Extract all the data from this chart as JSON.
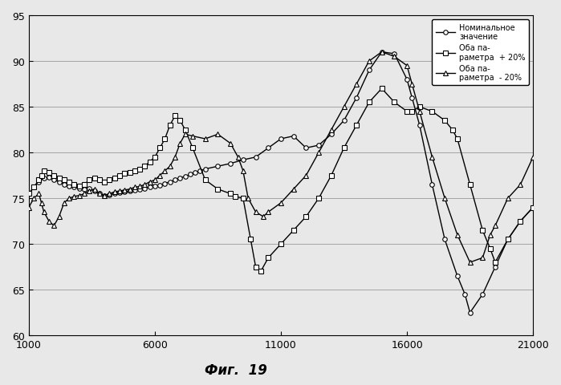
{
  "fig_caption": "Фиг.  19",
  "xlim": [
    1000,
    21000
  ],
  "ylim": [
    60,
    95
  ],
  "xticks": [
    1000,
    6000,
    11000,
    16000,
    21000
  ],
  "yticks": [
    60,
    65,
    70,
    75,
    80,
    85,
    90,
    95
  ],
  "legend_labels": [
    "Номинальное\nзначение",
    "Оба па-\nраметра  + 20%",
    "Оба па-\nраметра  - 20%"
  ],
  "nominal_x": [
    1000,
    1200,
    1400,
    1600,
    1800,
    2000,
    2200,
    2400,
    2600,
    2800,
    3000,
    3200,
    3400,
    3600,
    3800,
    4000,
    4200,
    4400,
    4600,
    4800,
    5000,
    5200,
    5400,
    5600,
    5800,
    6000,
    6200,
    6400,
    6600,
    6800,
    7000,
    7200,
    7400,
    7600,
    7800,
    8000,
    8500,
    9000,
    9500,
    10000,
    10500,
    11000,
    11500,
    12000,
    12500,
    13000,
    13500,
    14000,
    14500,
    15000,
    15500,
    16000,
    16200,
    16500,
    17000,
    17500,
    18000,
    18300,
    18500,
    19000,
    19500,
    20000,
    20500,
    21000
  ],
  "nominal_y": [
    75.5,
    76.2,
    76.8,
    77.2,
    77.3,
    77.0,
    76.8,
    76.5,
    76.3,
    76.2,
    76.1,
    76.0,
    76.1,
    75.8,
    75.5,
    75.3,
    75.4,
    75.5,
    75.6,
    75.7,
    75.8,
    75.9,
    76.0,
    76.1,
    76.2,
    76.3,
    76.4,
    76.6,
    76.8,
    77.0,
    77.2,
    77.4,
    77.6,
    77.8,
    78.0,
    78.2,
    78.5,
    78.8,
    79.2,
    79.5,
    80.5,
    81.5,
    81.8,
    80.5,
    80.8,
    82.0,
    83.5,
    86.0,
    89.0,
    91.0,
    90.8,
    88.0,
    86.0,
    83.0,
    76.5,
    70.5,
    66.5,
    64.5,
    62.5,
    64.5,
    67.5,
    70.5,
    72.5,
    74.0
  ],
  "plus20_x": [
    1000,
    1200,
    1400,
    1500,
    1600,
    1800,
    2000,
    2200,
    2400,
    2600,
    2800,
    3000,
    3200,
    3400,
    3600,
    3800,
    4000,
    4200,
    4400,
    4600,
    4800,
    5000,
    5200,
    5400,
    5600,
    5800,
    6000,
    6200,
    6400,
    6600,
    6800,
    7000,
    7200,
    7500,
    8000,
    8500,
    9000,
    9200,
    9500,
    9800,
    10000,
    10200,
    10500,
    11000,
    11500,
    12000,
    12500,
    13000,
    13500,
    14000,
    14500,
    15000,
    15500,
    16000,
    16200,
    16500,
    17000,
    17500,
    17800,
    18000,
    18500,
    19000,
    19300,
    19500,
    20000,
    20500,
    21000
  ],
  "plus20_y": [
    75.5,
    76.2,
    77.0,
    77.5,
    78.0,
    77.8,
    77.5,
    77.2,
    77.0,
    76.8,
    76.5,
    76.3,
    76.5,
    77.0,
    77.2,
    77.0,
    76.8,
    77.0,
    77.2,
    77.5,
    77.7,
    77.8,
    78.0,
    78.2,
    78.5,
    79.0,
    79.5,
    80.5,
    81.5,
    83.0,
    84.0,
    83.5,
    82.5,
    80.5,
    77.0,
    76.0,
    75.5,
    75.2,
    75.0,
    70.5,
    67.5,
    67.0,
    68.5,
    70.0,
    71.5,
    73.0,
    75.0,
    77.5,
    80.5,
    83.0,
    85.5,
    87.0,
    85.5,
    84.5,
    84.5,
    85.0,
    84.5,
    83.5,
    82.5,
    81.5,
    76.5,
    71.5,
    69.5,
    68.0,
    70.5,
    72.5,
    74.0
  ],
  "minus20_x": [
    1000,
    1200,
    1400,
    1500,
    1600,
    1800,
    2000,
    2200,
    2400,
    2600,
    2800,
    3000,
    3200,
    3400,
    3600,
    3800,
    4000,
    4200,
    4400,
    4600,
    4800,
    5000,
    5200,
    5400,
    5600,
    5800,
    6000,
    6200,
    6400,
    6600,
    6800,
    7000,
    7200,
    7500,
    8000,
    8500,
    9000,
    9300,
    9500,
    9700,
    10000,
    10300,
    10500,
    11000,
    11500,
    12000,
    12500,
    13000,
    13500,
    14000,
    14500,
    15000,
    15500,
    16000,
    16200,
    16500,
    17000,
    17500,
    18000,
    18500,
    19000,
    19300,
    19500,
    20000,
    20500,
    21000
  ],
  "minus20_y": [
    74.0,
    75.0,
    75.5,
    74.5,
    73.5,
    72.5,
    72.0,
    73.0,
    74.5,
    75.0,
    75.2,
    75.3,
    75.5,
    75.8,
    76.0,
    75.5,
    75.3,
    75.5,
    75.7,
    75.8,
    75.9,
    76.0,
    76.2,
    76.3,
    76.5,
    76.8,
    77.0,
    77.5,
    78.0,
    78.5,
    79.5,
    81.0,
    82.0,
    81.8,
    81.5,
    82.0,
    81.0,
    79.5,
    78.0,
    75.0,
    73.5,
    73.0,
    73.5,
    74.5,
    76.0,
    77.5,
    80.0,
    82.5,
    85.0,
    87.5,
    90.0,
    91.0,
    90.5,
    89.5,
    87.5,
    84.5,
    79.5,
    75.0,
    71.0,
    68.0,
    68.5,
    71.0,
    72.0,
    75.0,
    76.5,
    79.5
  ]
}
